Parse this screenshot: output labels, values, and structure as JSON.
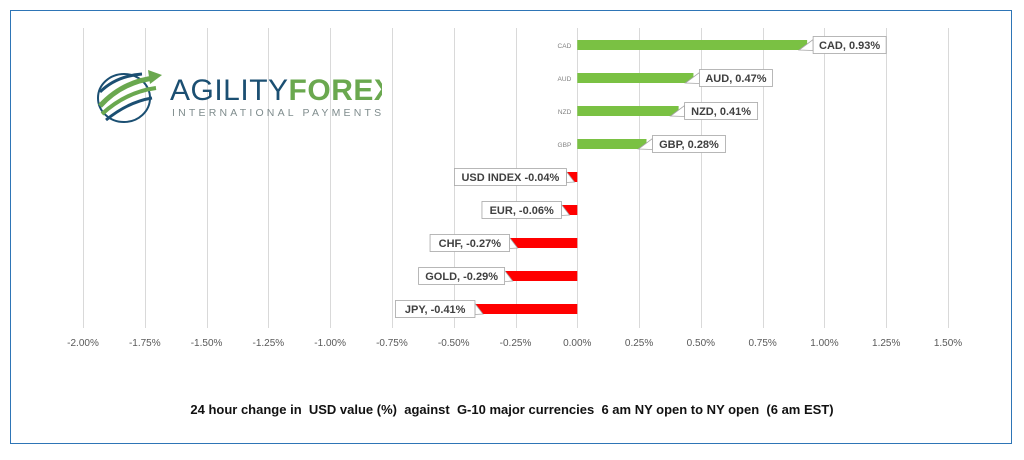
{
  "brand": {
    "name_part1": "AGILITY",
    "name_part2": "FOREX",
    "tagline": "INTERNATIONAL PAYMENTS"
  },
  "caption": "24 hour change in  USD value (%)  against  G-10 major currencies  6 am NY open to NY open  (6 am EST)",
  "colors": {
    "positive": "#7ac143",
    "negative": "#ff0000",
    "grid": "#d9d9d9",
    "frame": "#2e75b6",
    "label_border": "#a6a6a6"
  },
  "chart_data": {
    "type": "bar",
    "orientation": "horizontal",
    "categories": [
      "CAD",
      "AUD",
      "NZD",
      "GBP",
      "USD INDEX",
      "EUR",
      "CHF",
      "GOLD",
      "JPY"
    ],
    "values": [
      0.93,
      0.47,
      0.41,
      0.28,
      -0.04,
      -0.06,
      -0.27,
      -0.29,
      -0.41
    ],
    "data_labels": [
      "CAD, 0.93%",
      "AUD, 0.47%",
      "NZD, 0.41%",
      "GBP, 0.28%",
      "USD INDEX -0.04%",
      "EUR, -0.06%",
      "CHF, -0.27%",
      "GOLD, -0.29%",
      "JPY, -0.41%"
    ],
    "axis_category_labels": [
      "CAD",
      "AUD",
      "NZD",
      "GBP",
      "",
      "",
      "",
      "",
      ""
    ],
    "xlim": [
      -2.0,
      1.5
    ],
    "xticks": [
      -2.0,
      -1.75,
      -1.5,
      -1.25,
      -1.0,
      -0.75,
      -0.5,
      -0.25,
      0.0,
      0.25,
      0.5,
      0.75,
      1.0,
      1.25,
      1.5
    ],
    "xtick_labels": [
      "-2.00%",
      "-1.75%",
      "-1.50%",
      "-1.25%",
      "-1.00%",
      "-0.75%",
      "-0.50%",
      "-0.25%",
      "0.00%",
      "0.25%",
      "0.50%",
      "0.75%",
      "1.00%",
      "1.25%",
      "1.50%"
    ],
    "grid": true,
    "legend": "none",
    "title": ""
  }
}
